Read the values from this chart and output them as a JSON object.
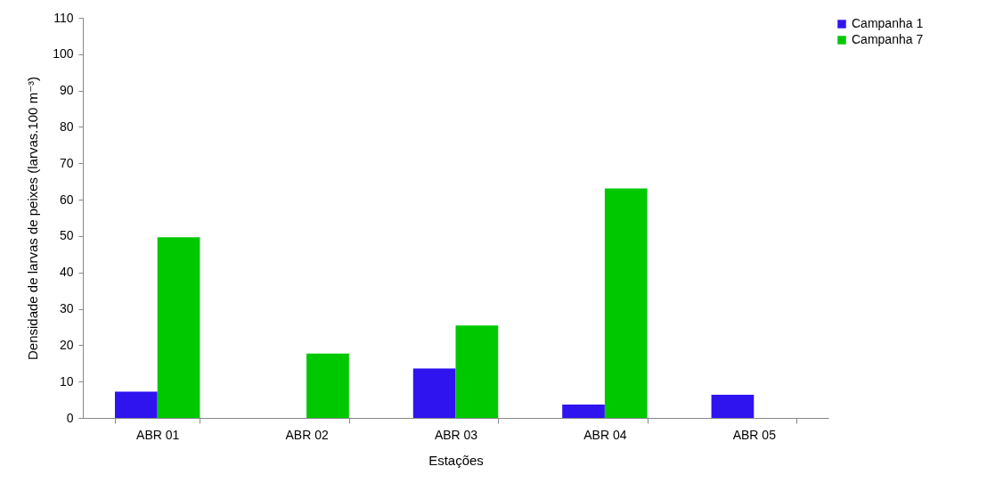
{
  "chart_data": {
    "type": "bar",
    "xlabel": "Estações",
    "ylabel": "Densidade de larvas de peixes (larvas.100 m⁻³)",
    "categories": [
      "ABR 01",
      "ABR 02",
      "ABR 03",
      "ABR 04",
      "ABR 05"
    ],
    "series": [
      {
        "name": "Campanha 1",
        "color": "#2f14f0",
        "values": [
          7.2,
          0,
          13.6,
          3.7,
          6.4
        ]
      },
      {
        "name": "Campanha 7",
        "color": "#00c800",
        "values": [
          49.7,
          17.7,
          25.4,
          63.1,
          0
        ]
      }
    ],
    "ylim": [
      0,
      110
    ],
    "yticks": [
      0,
      10,
      20,
      30,
      40,
      50,
      60,
      70,
      80,
      90,
      100,
      110
    ],
    "grid": false,
    "legend": "right"
  }
}
